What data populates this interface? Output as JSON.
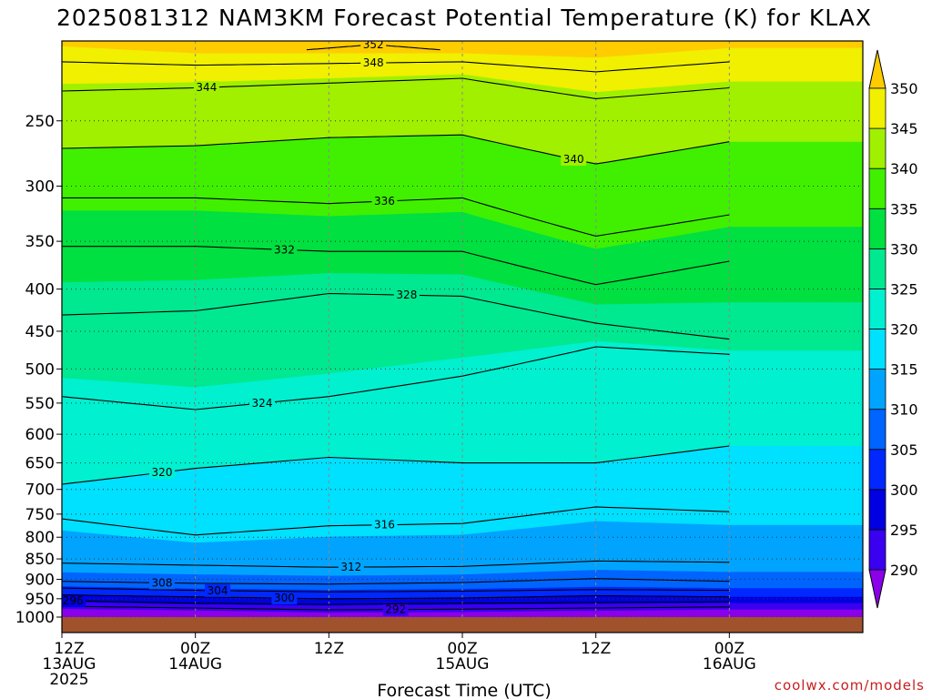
{
  "chart_data": {
    "type": "contour",
    "title": "2025081312 NAM3KM Forecast Potential Temperature (K) for KLAX",
    "xlabel": "Forecast Time (UTC)",
    "ylabel": "",
    "credit": "coolwx.com/models",
    "x_hours_range": [
      0,
      72
    ],
    "x_ticks": [
      {
        "hour": 0,
        "lines": [
          "12Z",
          "13AUG",
          "2025"
        ]
      },
      {
        "hour": 12,
        "lines": [
          "00Z",
          "14AUG"
        ]
      },
      {
        "hour": 24,
        "lines": [
          "12Z"
        ]
      },
      {
        "hour": 36,
        "lines": [
          "00Z",
          "15AUG"
        ]
      },
      {
        "hour": 48,
        "lines": [
          "12Z"
        ]
      },
      {
        "hour": 60,
        "lines": [
          "00Z",
          "16AUG"
        ]
      }
    ],
    "pressure_range": [
      1000,
      200
    ],
    "y_ticks": [
      250,
      300,
      350,
      400,
      450,
      500,
      550,
      600,
      650,
      700,
      750,
      800,
      850,
      900,
      950,
      1000
    ],
    "colorbar": {
      "levels": [
        290,
        295,
        300,
        305,
        310,
        315,
        320,
        325,
        330,
        335,
        340,
        345,
        350
      ],
      "colors": [
        "#8a00e8",
        "#3a00f0",
        "#0000e0",
        "#0028ff",
        "#0064ff",
        "#00a4ff",
        "#00e0ff",
        "#00f0d0",
        "#00e890",
        "#00e040",
        "#40f000",
        "#a0f000",
        "#f0f000",
        "#ffcc00"
      ]
    },
    "isentropes": [
      {
        "theta": 292,
        "points": [
          [
            0,
            970
          ],
          [
            12,
            975
          ],
          [
            24,
            980
          ],
          [
            36,
            978
          ],
          [
            48,
            975
          ],
          [
            60,
            972
          ]
        ],
        "label_hour": 30
      },
      {
        "theta": 296,
        "points": [
          [
            0,
            955
          ],
          [
            12,
            962
          ],
          [
            24,
            965
          ],
          [
            36,
            962
          ],
          [
            48,
            960
          ],
          [
            60,
            958
          ]
        ],
        "label_hour": 1
      },
      {
        "theta": 300,
        "points": [
          [
            0,
            940
          ],
          [
            12,
            945
          ],
          [
            24,
            950
          ],
          [
            36,
            948
          ],
          [
            48,
            942
          ],
          [
            60,
            945
          ]
        ],
        "label_hour": 20
      },
      {
        "theta": 304,
        "points": [
          [
            0,
            922
          ],
          [
            12,
            928
          ],
          [
            24,
            932
          ],
          [
            36,
            930
          ],
          [
            48,
            926
          ],
          [
            60,
            928
          ]
        ],
        "label_hour": 14
      },
      {
        "theta": 308,
        "points": [
          [
            0,
            905
          ],
          [
            12,
            910
          ],
          [
            24,
            912
          ],
          [
            36,
            908
          ],
          [
            48,
            898
          ],
          [
            60,
            905
          ]
        ],
        "label_hour": 9
      },
      {
        "theta": 312,
        "points": [
          [
            0,
            860
          ],
          [
            12,
            865
          ],
          [
            24,
            870
          ],
          [
            36,
            868
          ],
          [
            48,
            855
          ],
          [
            60,
            858
          ]
        ],
        "label_hour": 26
      },
      {
        "theta": 316,
        "points": [
          [
            0,
            760
          ],
          [
            12,
            795
          ],
          [
            24,
            775
          ],
          [
            36,
            770
          ],
          [
            48,
            735
          ],
          [
            60,
            745
          ]
        ],
        "label_hour": 29
      },
      {
        "theta": 320,
        "points": [
          [
            0,
            690
          ],
          [
            12,
            660
          ],
          [
            24,
            640
          ],
          [
            36,
            650
          ],
          [
            48,
            650
          ],
          [
            60,
            620
          ]
        ],
        "label_hour": 9
      },
      {
        "theta": 324,
        "points": [
          [
            0,
            540
          ],
          [
            12,
            560
          ],
          [
            24,
            540
          ],
          [
            36,
            510
          ],
          [
            48,
            470
          ],
          [
            60,
            480
          ]
        ],
        "label_hour": 18
      },
      {
        "theta": 328,
        "points": [
          [
            0,
            430
          ],
          [
            12,
            425
          ],
          [
            24,
            405
          ],
          [
            36,
            408
          ],
          [
            48,
            440
          ],
          [
            60,
            460
          ]
        ],
        "label_hour": 31
      },
      {
        "theta": 332,
        "points": [
          [
            0,
            355
          ],
          [
            12,
            355
          ],
          [
            24,
            360
          ],
          [
            36,
            360
          ],
          [
            48,
            395
          ],
          [
            60,
            370
          ]
        ],
        "label_hour": 20
      },
      {
        "theta": 336,
        "points": [
          [
            0,
            310
          ],
          [
            12,
            310
          ],
          [
            24,
            315
          ],
          [
            36,
            310
          ],
          [
            48,
            345
          ],
          [
            60,
            325
          ]
        ],
        "label_hour": 29
      },
      {
        "theta": 340,
        "points": [
          [
            0,
            270
          ],
          [
            12,
            268
          ],
          [
            24,
            262
          ],
          [
            36,
            260
          ],
          [
            48,
            282
          ],
          [
            60,
            265
          ]
        ],
        "label_hour": 46
      },
      {
        "theta": 344,
        "points": [
          [
            0,
            230
          ],
          [
            12,
            228
          ],
          [
            24,
            225
          ],
          [
            36,
            222
          ],
          [
            48,
            235
          ],
          [
            60,
            228
          ]
        ],
        "label_hour": 13
      },
      {
        "theta": 348,
        "points": [
          [
            0,
            212
          ],
          [
            12,
            214
          ],
          [
            24,
            213
          ],
          [
            36,
            212
          ],
          [
            48,
            218
          ],
          [
            60,
            212
          ]
        ],
        "label_hour": 28
      },
      {
        "theta": 352,
        "points": [
          [
            22,
            205
          ],
          [
            28,
            202
          ],
          [
            34,
            205
          ]
        ],
        "label_hour": 28
      }
    ]
  }
}
